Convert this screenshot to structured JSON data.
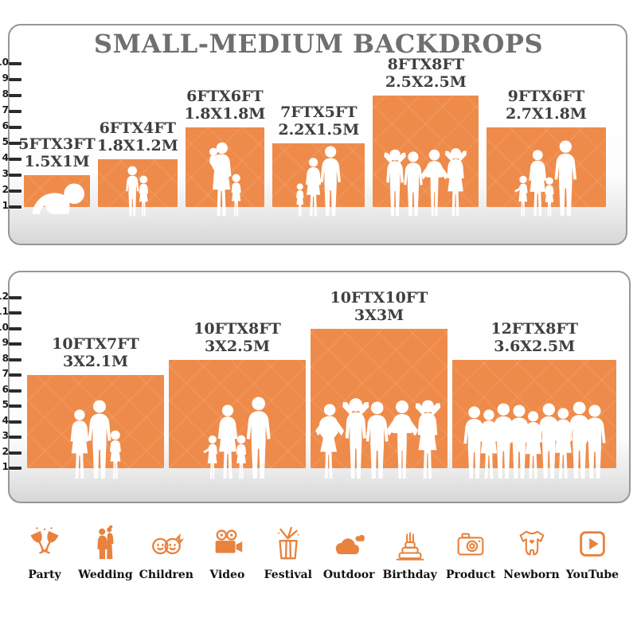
{
  "title": "SMALL-MEDIUM BACKDROPS",
  "colors": {
    "backdrop_orange": "#EE8B4A",
    "icon_orange": "#E8823D",
    "title_gray": "#6E6F71",
    "label_dark": "#3E3F40",
    "tick_dark": "#2C2C2C",
    "panel_border": "#979797",
    "floor_gray": "#D7D7D7"
  },
  "chart_data": [
    {
      "type": "bar",
      "panel": "small-medium-top",
      "title": "SMALL-MEDIUM BACKDROPS",
      "ruler_min": 1,
      "ruler_max": 10,
      "ruler_unit": "ft",
      "items": [
        {
          "label_ft": "5FTX3FT",
          "label_m": "1.5X1M",
          "width_ft": 5,
          "height_ft": 3,
          "figures": [
            [
              "baby-crawl",
              44
            ]
          ]
        },
        {
          "label_ft": "6FTX4FT",
          "label_m": "1.8X1.2M",
          "width_ft": 6,
          "height_ft": 4,
          "figures": [
            [
              "boy",
              64
            ],
            [
              "girl",
              52
            ]
          ]
        },
        {
          "label_ft": "6FTX6FT",
          "label_m": "1.8X1.8M",
          "width_ft": 6,
          "height_ft": 6,
          "figures": [
            [
              "woman-baby",
              94
            ],
            [
              "girl",
              54
            ]
          ]
        },
        {
          "label_ft": "7FTX5FT",
          "label_m": "2.2X1.5M",
          "width_ft": 7,
          "height_ft": 5,
          "figures": [
            [
              "girl",
              42
            ],
            [
              "woman",
              74
            ],
            [
              "man",
              89
            ]
          ]
        },
        {
          "label_ft": "8FTX8FT",
          "label_m": "2.5X2.5M",
          "width_ft": 8,
          "height_ft": 8,
          "figures": [
            [
              "man-armsup",
              86
            ],
            [
              "man",
              82
            ],
            [
              "man-hips",
              85
            ],
            [
              "woman-armsup",
              88
            ]
          ]
        },
        {
          "label_ft": "9FTX6FT",
          "label_m": "2.7X1.8M",
          "width_ft": 9,
          "height_ft": 6,
          "figures": [
            [
              "waving-girl",
              52
            ],
            [
              "woman",
              84
            ],
            [
              "girl",
              50
            ],
            [
              "man",
              96
            ]
          ]
        }
      ]
    },
    {
      "type": "bar",
      "panel": "medium-large-bottom",
      "ruler_min": 1,
      "ruler_max": 12,
      "ruler_unit": "ft",
      "items": [
        {
          "label_ft": "10FTX7FT",
          "label_m": "3X2.1M",
          "width_ft": 10,
          "height_ft": 7,
          "figures": [
            [
              "woman",
              88
            ],
            [
              "man",
              100
            ],
            [
              "girl",
              62
            ]
          ]
        },
        {
          "label_ft": "10FTX8FT",
          "label_m": "3X2.5M",
          "width_ft": 10,
          "height_ft": 8,
          "figures": [
            [
              "waving-girl",
              56
            ],
            [
              "woman",
              94
            ],
            [
              "girl",
              56
            ],
            [
              "man",
              104
            ]
          ]
        },
        {
          "label_ft": "10FTX10FT",
          "label_m": "3X3M",
          "width_ft": 10,
          "height_ft": 10,
          "figures": [
            [
              "woman-hips",
              96
            ],
            [
              "man-armsup",
              104
            ],
            [
              "man",
              98
            ],
            [
              "man-hips",
              100
            ],
            [
              "woman-armsup",
              102
            ]
          ]
        },
        {
          "label_ft": "12FTX8FT",
          "label_m": "3.6X2.5M",
          "width_ft": 12,
          "height_ft": 8,
          "figures": [
            [
              "man",
              92
            ],
            [
              "woman",
              88
            ],
            [
              "man",
              96
            ],
            [
              "man",
              94
            ],
            [
              "woman",
              86
            ],
            [
              "man",
              96
            ],
            [
              "woman",
              90
            ],
            [
              "man",
              98
            ],
            [
              "man",
              94
            ]
          ]
        }
      ]
    }
  ],
  "categories": [
    {
      "label": "Party",
      "icon": "party-icon"
    },
    {
      "label": "Wedding",
      "icon": "wedding-icon"
    },
    {
      "label": "Children",
      "icon": "children-icon"
    },
    {
      "label": "Video",
      "icon": "video-icon"
    },
    {
      "label": "Festival",
      "icon": "festival-icon"
    },
    {
      "label": "Outdoor",
      "icon": "outdoor-icon"
    },
    {
      "label": "Birthday",
      "icon": "birthday-icon"
    },
    {
      "label": "Product",
      "icon": "product-icon"
    },
    {
      "label": "Newborn",
      "icon": "newborn-icon"
    },
    {
      "label": "YouTube",
      "icon": "youtube-icon"
    }
  ]
}
